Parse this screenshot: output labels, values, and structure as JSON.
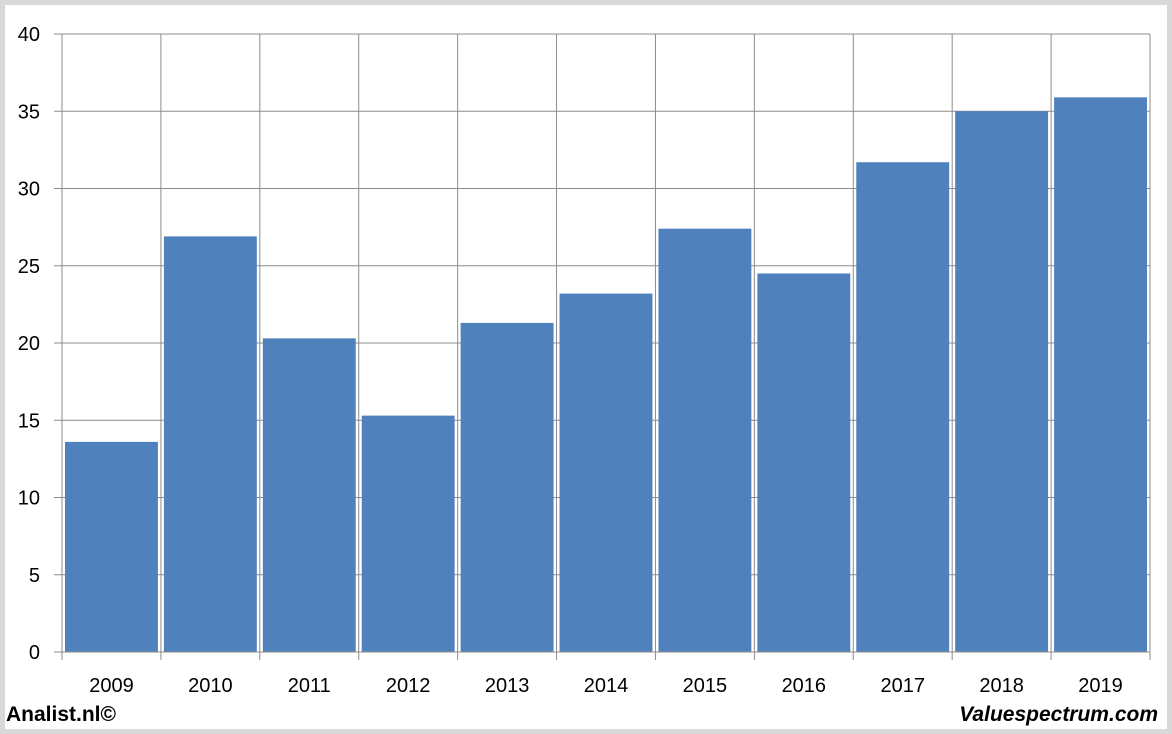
{
  "chart_data": {
    "type": "bar",
    "title": "",
    "xlabel": "",
    "ylabel": "",
    "categories": [
      "2009",
      "2010",
      "2011",
      "2012",
      "2013",
      "2014",
      "2015",
      "2016",
      "2017",
      "2018",
      "2019"
    ],
    "values": [
      13.6,
      26.9,
      20.3,
      15.3,
      21.3,
      23.2,
      27.4,
      24.5,
      31.7,
      35.0,
      35.9
    ],
    "ylim": [
      0,
      40
    ],
    "yticks": [
      "0",
      "5",
      "10",
      "15",
      "20",
      "25",
      "30",
      "35",
      "40"
    ],
    "grid": true,
    "legend": "none",
    "bar_color": "#4f81bd"
  },
  "footer": {
    "left": "Analist.nl©",
    "right": "Valuespectrum.com"
  }
}
